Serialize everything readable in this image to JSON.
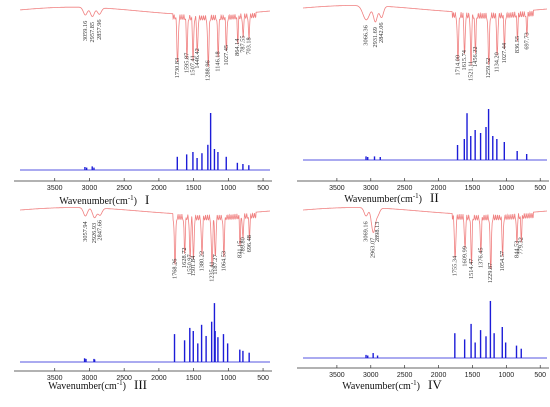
{
  "chart_data": [
    {
      "type": "line",
      "panel_label": "I",
      "xlabel": "Wavenumber(cm",
      "xlabel_sup": "-1",
      "xlabel_close": ")",
      "xlim": [
        4000,
        400
      ],
      "x_ticks": [
        3500,
        3000,
        2500,
        2000,
        1500,
        1000,
        500
      ],
      "series": [
        {
          "role": "experimental",
          "color": "#f08080",
          "baseline": 0.06,
          "bands": [
            {
              "x": 3059.16,
              "d": 0.12,
              "w": 40
            },
            {
              "x": 2957.85,
              "d": 0.14,
              "w": 40
            },
            {
              "x": 2857.96,
              "d": 0.1,
              "w": 40
            },
            {
              "x": 1730.83,
              "d": 0.7,
              "w": 14
            },
            {
              "x": 1595.87,
              "d": 0.62,
              "w": 12
            },
            {
              "x": 1507.41,
              "d": 0.66,
              "w": 12
            },
            {
              "x": 1446.42,
              "d": 0.55,
              "w": 12
            },
            {
              "x": 1288.96,
              "d": 0.74,
              "w": 14
            },
            {
              "x": 1146.18,
              "d": 0.6,
              "w": 12
            },
            {
              "x": 1027.45,
              "d": 0.5,
              "w": 12
            },
            {
              "x": 864.14,
              "d": 0.4,
              "w": 10
            },
            {
              "x": 787.55,
              "d": 0.35,
              "w": 10
            },
            {
              "x": 703.18,
              "d": 0.38,
              "w": 10
            }
          ]
        },
        {
          "role": "calculated",
          "color": "#1c1cd8",
          "lines": [
            {
              "x": 3065,
              "h": 0.05
            },
            {
              "x": 3040,
              "h": 0.04
            },
            {
              "x": 2960,
              "h": 0.06
            },
            {
              "x": 2935,
              "h": 0.04
            },
            {
              "x": 1735,
              "h": 0.22
            },
            {
              "x": 1600,
              "h": 0.26
            },
            {
              "x": 1510,
              "h": 0.3
            },
            {
              "x": 1450,
              "h": 0.2
            },
            {
              "x": 1380,
              "h": 0.28
            },
            {
              "x": 1295,
              "h": 0.42
            },
            {
              "x": 1255,
              "h": 0.95
            },
            {
              "x": 1200,
              "h": 0.35
            },
            {
              "x": 1150,
              "h": 0.3
            },
            {
              "x": 1030,
              "h": 0.22
            },
            {
              "x": 870,
              "h": 0.12
            },
            {
              "x": 790,
              "h": 0.1
            },
            {
              "x": 705,
              "h": 0.08
            }
          ]
        }
      ],
      "annotations": [
        "3059.16",
        "2957.85",
        "2857.96",
        "1730.83",
        "1595.87",
        "1507.41",
        "1446.42",
        "1288.96",
        "1146.18",
        "1027.45",
        "864.14",
        "787.55",
        "703.18"
      ]
    },
    {
      "type": "line",
      "panel_label": "II",
      "xlabel": "Wavenumber(cm",
      "xlabel_sup": "-1",
      "xlabel_close": ")",
      "xlim": [
        4000,
        400
      ],
      "x_ticks": [
        3500,
        3000,
        2500,
        2000,
        1500,
        1000,
        500
      ],
      "series": [
        {
          "role": "experimental",
          "color": "#f08080",
          "baseline": 0.05,
          "bands": [
            {
              "x": 3066.36,
              "d": 0.2,
              "w": 70
            },
            {
              "x": 2931.69,
              "d": 0.22,
              "w": 40
            },
            {
              "x": 2842.06,
              "d": 0.16,
              "w": 40
            },
            {
              "x": 1714.0,
              "d": 0.62,
              "w": 14
            },
            {
              "x": 1615.74,
              "d": 0.55,
              "w": 12
            },
            {
              "x": 1521.11,
              "d": 0.7,
              "w": 12
            },
            {
              "x": 1456.22,
              "d": 0.5,
              "w": 12
            },
            {
              "x": 1259.52,
              "d": 0.66,
              "w": 14
            },
            {
              "x": 1134.2,
              "d": 0.58,
              "w": 12
            },
            {
              "x": 1027.44,
              "d": 0.45,
              "w": 12
            },
            {
              "x": 836.55,
              "d": 0.35,
              "w": 10
            },
            {
              "x": 697.73,
              "d": 0.3,
              "w": 10
            }
          ]
        },
        {
          "role": "calculated",
          "color": "#1c1cd8",
          "lines": [
            {
              "x": 3070,
              "h": 0.06
            },
            {
              "x": 3045,
              "h": 0.05
            },
            {
              "x": 2945,
              "h": 0.06
            },
            {
              "x": 2860,
              "h": 0.05
            },
            {
              "x": 1720,
              "h": 0.25
            },
            {
              "x": 1620,
              "h": 0.35
            },
            {
              "x": 1580,
              "h": 0.78
            },
            {
              "x": 1525,
              "h": 0.4
            },
            {
              "x": 1460,
              "h": 0.5
            },
            {
              "x": 1380,
              "h": 0.45
            },
            {
              "x": 1300,
              "h": 0.55
            },
            {
              "x": 1262,
              "h": 0.85
            },
            {
              "x": 1200,
              "h": 0.4
            },
            {
              "x": 1140,
              "h": 0.35
            },
            {
              "x": 1030,
              "h": 0.3
            },
            {
              "x": 840,
              "h": 0.15
            },
            {
              "x": 700,
              "h": 0.1
            }
          ]
        }
      ],
      "annotations": [
        "3066.36",
        "2931.69",
        "2842.06",
        "1714.00",
        "1615.74",
        "1521.11",
        "1456.22",
        "1259.52",
        "1134.20",
        "1027.44",
        "836.55",
        "697.73"
      ]
    },
    {
      "type": "line",
      "panel_label": "III",
      "xlabel": "Wavenumber(cm",
      "xlabel_sup": "-1",
      "xlabel_close": ")",
      "xlim": [
        4000,
        400
      ],
      "x_ticks": [
        3500,
        3000,
        2500,
        2000,
        1500,
        1000,
        500
      ],
      "series": [
        {
          "role": "experimental",
          "color": "#f08080",
          "baseline": 0.05,
          "bands": [
            {
              "x": 3057.94,
              "d": 0.12,
              "w": 40
            },
            {
              "x": 2926.93,
              "d": 0.14,
              "w": 40
            },
            {
              "x": 2847.66,
              "d": 0.1,
              "w": 40
            },
            {
              "x": 1768.26,
              "d": 0.66,
              "w": 14
            },
            {
              "x": 1628.72,
              "d": 0.5,
              "w": 12
            },
            {
              "x": 1550.97,
              "d": 0.6,
              "w": 12
            },
            {
              "x": 1501.84,
              "d": 0.62,
              "w": 12
            },
            {
              "x": 1380.22,
              "d": 0.55,
              "w": 12
            },
            {
              "x": 1235.41,
              "d": 0.7,
              "w": 14
            },
            {
              "x": 1187.27,
              "d": 0.6,
              "w": 12
            },
            {
              "x": 1064.53,
              "d": 0.55,
              "w": 12
            },
            {
              "x": 831.15,
              "d": 0.4,
              "w": 10
            },
            {
              "x": 789.8,
              "d": 0.35,
              "w": 10
            },
            {
              "x": 696.48,
              "d": 0.32,
              "w": 10
            }
          ]
        },
        {
          "role": "calculated",
          "color": "#1c1cd8",
          "lines": [
            {
              "x": 3070,
              "h": 0.06
            },
            {
              "x": 3050,
              "h": 0.05
            },
            {
              "x": 2935,
              "h": 0.05
            },
            {
              "x": 2925,
              "h": 0.04
            },
            {
              "x": 1775,
              "h": 0.45
            },
            {
              "x": 1630,
              "h": 0.35
            },
            {
              "x": 1555,
              "h": 0.55
            },
            {
              "x": 1505,
              "h": 0.5
            },
            {
              "x": 1440,
              "h": 0.3
            },
            {
              "x": 1385,
              "h": 0.6
            },
            {
              "x": 1320,
              "h": 0.42
            },
            {
              "x": 1240,
              "h": 0.65
            },
            {
              "x": 1200,
              "h": 0.95
            },
            {
              "x": 1190,
              "h": 0.5
            },
            {
              "x": 1150,
              "h": 0.4
            },
            {
              "x": 1070,
              "h": 0.45
            },
            {
              "x": 1010,
              "h": 0.3
            },
            {
              "x": 835,
              "h": 0.2
            },
            {
              "x": 790,
              "h": 0.18
            },
            {
              "x": 700,
              "h": 0.15
            }
          ]
        }
      ],
      "annotations": [
        "3057.94",
        "2926.93",
        "2847.66",
        "1768.26",
        "1628.72",
        "1550.97",
        "1501.84",
        "1380.22",
        "1235.41",
        "1187.27",
        "1064.53",
        "831.15",
        "789.80",
        "696.48"
      ]
    },
    {
      "type": "line",
      "panel_label": "IV",
      "xlabel": "Wavenumber(cm",
      "xlabel_sup": "-1",
      "xlabel_close": ")",
      "xlim": [
        4000,
        400
      ],
      "x_ticks": [
        3500,
        3000,
        2500,
        2000,
        1500,
        1000,
        500
      ],
      "series": [
        {
          "role": "experimental",
          "color": "#f08080",
          "baseline": 0.05,
          "bands": [
            {
              "x": 3069.16,
              "d": 0.12,
              "w": 40
            },
            {
              "x": 2963.07,
              "d": 0.35,
              "w": 40
            },
            {
              "x": 2898.13,
              "d": 0.1,
              "w": 40
            },
            {
              "x": 1755.34,
              "d": 0.62,
              "w": 14
            },
            {
              "x": 1609.99,
              "d": 0.48,
              "w": 12
            },
            {
              "x": 1514.47,
              "d": 0.66,
              "w": 12
            },
            {
              "x": 1376.45,
              "d": 0.5,
              "w": 12
            },
            {
              "x": 1229.87,
              "d": 0.72,
              "w": 14
            },
            {
              "x": 1054.57,
              "d": 0.55,
              "w": 12
            },
            {
              "x": 844.53,
              "d": 0.4,
              "w": 10
            },
            {
              "x": 779.32,
              "d": 0.35,
              "w": 10
            }
          ]
        },
        {
          "role": "calculated",
          "color": "#1c1cd8",
          "lines": [
            {
              "x": 3070,
              "h": 0.05
            },
            {
              "x": 3045,
              "h": 0.04
            },
            {
              "x": 2965,
              "h": 0.08
            },
            {
              "x": 2900,
              "h": 0.04
            },
            {
              "x": 1760,
              "h": 0.4
            },
            {
              "x": 1615,
              "h": 0.3
            },
            {
              "x": 1520,
              "h": 0.55
            },
            {
              "x": 1460,
              "h": 0.25
            },
            {
              "x": 1380,
              "h": 0.45
            },
            {
              "x": 1300,
              "h": 0.35
            },
            {
              "x": 1235,
              "h": 0.92
            },
            {
              "x": 1180,
              "h": 0.4
            },
            {
              "x": 1060,
              "h": 0.5
            },
            {
              "x": 1010,
              "h": 0.25
            },
            {
              "x": 850,
              "h": 0.2
            },
            {
              "x": 780,
              "h": 0.15
            }
          ]
        }
      ],
      "annotations": [
        "3069.16",
        "2963.07",
        "2898.13",
        "1755.34",
        "1609.99",
        "1514.47",
        "1376.45",
        "1229.87",
        "1054.57",
        "844.53",
        "779.32"
      ]
    }
  ]
}
